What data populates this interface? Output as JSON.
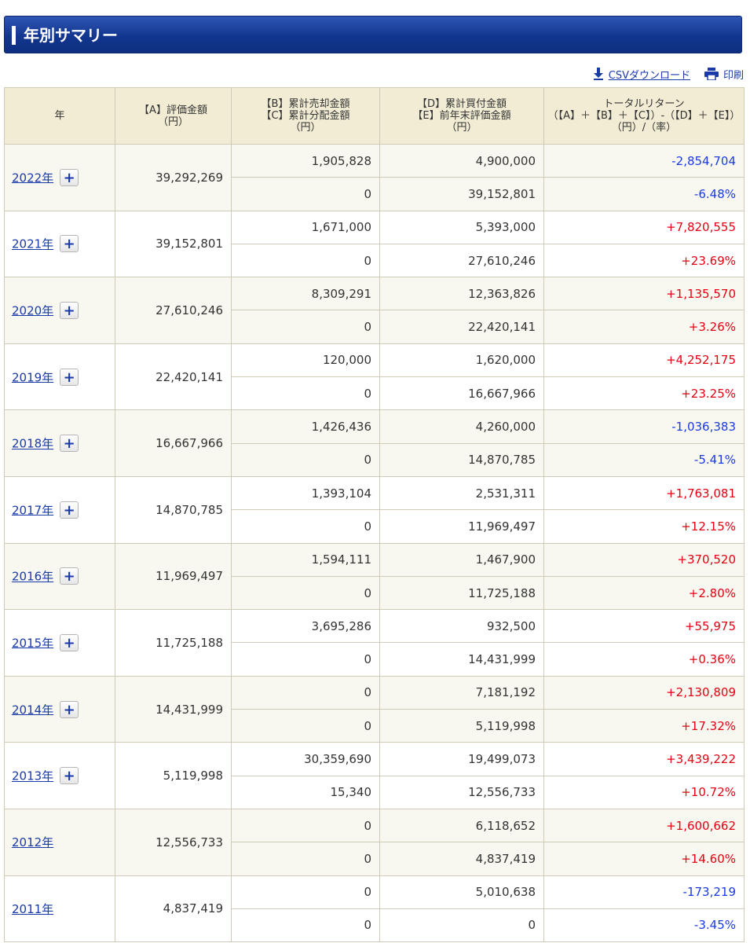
{
  "page": {
    "title": "年別サマリー"
  },
  "tools": {
    "csv_label": "CSVダウンロード",
    "print_label": "印刷"
  },
  "columns": {
    "year": "年",
    "a": [
      "【A】評価金額",
      "（円）"
    ],
    "bc": [
      "【B】累計売却金額",
      "【C】累計分配金額",
      "（円）"
    ],
    "de": [
      "【D】累計買付金額",
      "【E】前年末評価金額",
      "（円）"
    ],
    "tr": [
      "トータルリターン",
      "（【A】＋【B】＋【C】）-（【D】＋【E】）",
      "（円）/（率）"
    ]
  },
  "colors": {
    "positive": "#e60012",
    "negative": "#1a3ae6",
    "link": "#1a3aa8",
    "header_bg": "#f1ecd3"
  },
  "rows": [
    {
      "year": "2022年",
      "expand": "+",
      "a": "39,292,269",
      "b": "1,905,828",
      "c": "0",
      "d": "4,900,000",
      "e": "39,152,801",
      "tr_yen": "-2,854,704",
      "tr_rate": "-6.48%",
      "sign": "neg"
    },
    {
      "year": "2021年",
      "expand": "+",
      "a": "39,152,801",
      "b": "1,671,000",
      "c": "0",
      "d": "5,393,000",
      "e": "27,610,246",
      "tr_yen": "+7,820,555",
      "tr_rate": "+23.69%",
      "sign": "pos"
    },
    {
      "year": "2020年",
      "expand": "+",
      "a": "27,610,246",
      "b": "8,309,291",
      "c": "0",
      "d": "12,363,826",
      "e": "22,420,141",
      "tr_yen": "+1,135,570",
      "tr_rate": "+3.26%",
      "sign": "pos"
    },
    {
      "year": "2019年",
      "expand": "+",
      "a": "22,420,141",
      "b": "120,000",
      "c": "0",
      "d": "1,620,000",
      "e": "16,667,966",
      "tr_yen": "+4,252,175",
      "tr_rate": "+23.25%",
      "sign": "pos"
    },
    {
      "year": "2018年",
      "expand": "+",
      "a": "16,667,966",
      "b": "1,426,436",
      "c": "0",
      "d": "4,260,000",
      "e": "14,870,785",
      "tr_yen": "-1,036,383",
      "tr_rate": "-5.41%",
      "sign": "neg"
    },
    {
      "year": "2017年",
      "expand": "+",
      "a": "14,870,785",
      "b": "1,393,104",
      "c": "0",
      "d": "2,531,311",
      "e": "11,969,497",
      "tr_yen": "+1,763,081",
      "tr_rate": "+12.15%",
      "sign": "pos"
    },
    {
      "year": "2016年",
      "expand": "+",
      "a": "11,969,497",
      "b": "1,594,111",
      "c": "0",
      "d": "1,467,900",
      "e": "11,725,188",
      "tr_yen": "+370,520",
      "tr_rate": "+2.80%",
      "sign": "pos"
    },
    {
      "year": "2015年",
      "expand": "+",
      "a": "11,725,188",
      "b": "3,695,286",
      "c": "0",
      "d": "932,500",
      "e": "14,431,999",
      "tr_yen": "+55,975",
      "tr_rate": "+0.36%",
      "sign": "pos"
    },
    {
      "year": "2014年",
      "expand": "+",
      "a": "14,431,999",
      "b": "0",
      "c": "0",
      "d": "7,181,192",
      "e": "5,119,998",
      "tr_yen": "+2,130,809",
      "tr_rate": "+17.32%",
      "sign": "pos"
    },
    {
      "year": "2013年",
      "expand": "+",
      "a": "5,119,998",
      "b": "30,359,690",
      "c": "15,340",
      "d": "19,499,073",
      "e": "12,556,733",
      "tr_yen": "+3,439,222",
      "tr_rate": "+10.72%",
      "sign": "pos"
    },
    {
      "year": "2012年",
      "expand": "",
      "a": "12,556,733",
      "b": "0",
      "c": "0",
      "d": "6,118,652",
      "e": "4,837,419",
      "tr_yen": "+1,600,662",
      "tr_rate": "+14.60%",
      "sign": "pos"
    },
    {
      "year": "2011年",
      "expand": "",
      "a": "4,837,419",
      "b": "0",
      "c": "0",
      "d": "5,010,638",
      "e": "0",
      "tr_yen": "-173,219",
      "tr_rate": "-3.45%",
      "sign": "neg"
    }
  ]
}
